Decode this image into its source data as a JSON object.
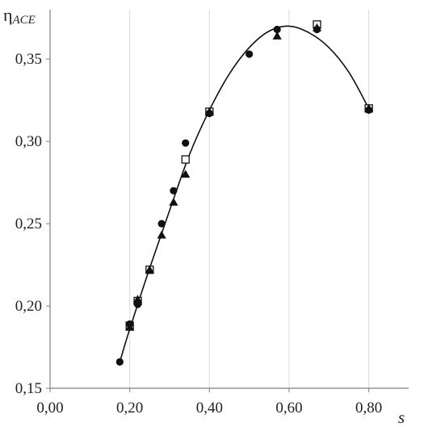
{
  "chart_data": {
    "type": "scatter",
    "ylabel": "η",
    "ylabel_sub": "ACE",
    "xlabel": "s",
    "xlim": [
      0.0,
      0.9
    ],
    "ylim": [
      0.15,
      0.38
    ],
    "x_ticks": [
      0.0,
      0.2,
      0.4,
      0.6,
      0.8
    ],
    "x_tick_labels": [
      "0,00",
      "0,20",
      "0,40",
      "0,60",
      "0,80"
    ],
    "y_ticks": [
      0.15,
      0.2,
      0.25,
      0.3,
      0.35
    ],
    "y_tick_labels": [
      "0,15",
      "0,20",
      "0,25",
      "0,30",
      "0,35"
    ],
    "grid": "vertical",
    "series": [
      {
        "marker": "circle",
        "color": "#111111",
        "points": [
          [
            0.175,
            0.166
          ],
          [
            0.2,
            0.189
          ],
          [
            0.22,
            0.201
          ],
          [
            0.28,
            0.25
          ],
          [
            0.31,
            0.27
          ],
          [
            0.34,
            0.299
          ],
          [
            0.4,
            0.317
          ],
          [
            0.5,
            0.353
          ],
          [
            0.57,
            0.368
          ],
          [
            0.67,
            0.368
          ],
          [
            0.8,
            0.319
          ]
        ]
      },
      {
        "marker": "triangle",
        "color": "#111111",
        "points": [
          [
            0.2,
            0.187
          ],
          [
            0.22,
            0.204
          ],
          [
            0.25,
            0.222
          ],
          [
            0.28,
            0.243
          ],
          [
            0.31,
            0.263
          ],
          [
            0.34,
            0.28
          ],
          [
            0.4,
            0.318
          ],
          [
            0.57,
            0.364
          ],
          [
            0.67,
            0.369
          ],
          [
            0.8,
            0.32
          ]
        ]
      },
      {
        "marker": "square-open",
        "color": "#111111",
        "points": [
          [
            0.2,
            0.188
          ],
          [
            0.22,
            0.203
          ],
          [
            0.25,
            0.222
          ],
          [
            0.34,
            0.289
          ],
          [
            0.4,
            0.318
          ],
          [
            0.67,
            0.371
          ],
          [
            0.8,
            0.32
          ]
        ]
      }
    ],
    "fit_curve": {
      "type": "line",
      "color": "#111111",
      "points": [
        [
          0.175,
          0.166
        ],
        [
          0.2,
          0.186
        ],
        [
          0.25,
          0.223
        ],
        [
          0.3,
          0.258
        ],
        [
          0.35,
          0.292
        ],
        [
          0.4,
          0.319
        ],
        [
          0.45,
          0.341
        ],
        [
          0.5,
          0.357
        ],
        [
          0.55,
          0.367
        ],
        [
          0.6,
          0.37
        ],
        [
          0.65,
          0.366
        ],
        [
          0.7,
          0.357
        ],
        [
          0.75,
          0.342
        ],
        [
          0.8,
          0.32
        ]
      ]
    }
  }
}
